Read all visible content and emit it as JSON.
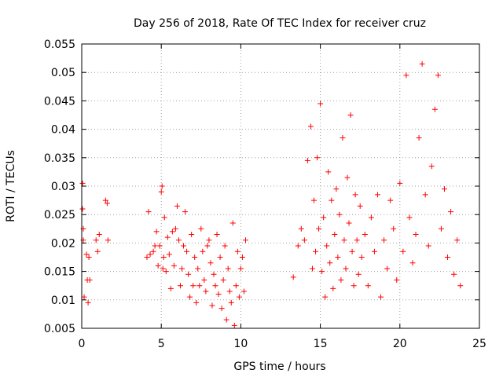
{
  "chart_data": {
    "type": "scatter",
    "title": "Day 256 of 2018, Rate Of TEC Index for receiver cruz",
    "xlabel": "GPS time / hours",
    "ylabel": "ROTI / TECUs",
    "xlim": [
      0,
      25
    ],
    "ylim": [
      0.005,
      0.055
    ],
    "xticks": [
      0,
      5,
      10,
      15,
      20,
      25
    ],
    "yticks": [
      0.005,
      0.01,
      0.015,
      0.02,
      0.025,
      0.03,
      0.035,
      0.04,
      0.045,
      0.05,
      0.055
    ],
    "xtick_labels": [
      "0",
      "5",
      "10",
      "15",
      "20",
      "25"
    ],
    "ytick_labels": [
      "0.005",
      "0.01",
      "0.015",
      "0.02",
      "0.025",
      "0.03",
      "0.035",
      "0.04",
      "0.045",
      "0.05",
      "0.055"
    ],
    "grid": true,
    "marker": "+",
    "color": "#ff0000",
    "series": [
      {
        "name": "ROTI",
        "x": [
          0.05,
          0.05,
          0.1,
          0.1,
          0.15,
          0.3,
          0.35,
          0.4,
          0.45,
          0.5,
          0.9,
          1.0,
          1.1,
          1.5,
          1.6,
          1.65,
          4.1,
          4.2,
          4.3,
          4.5,
          4.6,
          4.7,
          4.8,
          4.9,
          5.0,
          5.05,
          5.1,
          5.15,
          5.2,
          5.3,
          5.4,
          5.5,
          5.6,
          5.7,
          5.8,
          5.9,
          6.0,
          6.1,
          6.2,
          6.3,
          6.4,
          6.5,
          6.6,
          6.7,
          6.8,
          6.9,
          7.0,
          7.1,
          7.2,
          7.3,
          7.4,
          7.5,
          7.6,
          7.7,
          7.8,
          7.9,
          8.0,
          8.1,
          8.2,
          8.3,
          8.4,
          8.5,
          8.6,
          8.7,
          8.8,
          8.9,
          9.0,
          9.1,
          9.2,
          9.3,
          9.4,
          9.5,
          9.6,
          9.7,
          9.8,
          9.9,
          10.0,
          10.1,
          10.2,
          10.3,
          13.3,
          13.6,
          13.8,
          14.0,
          14.2,
          14.4,
          14.5,
          14.6,
          14.7,
          14.8,
          14.9,
          15.0,
          15.1,
          15.2,
          15.3,
          15.4,
          15.5,
          15.6,
          15.7,
          15.8,
          15.9,
          16.0,
          16.1,
          16.2,
          16.3,
          16.4,
          16.5,
          16.6,
          16.7,
          16.8,
          16.9,
          17.0,
          17.1,
          17.2,
          17.3,
          17.4,
          17.5,
          17.6,
          17.8,
          18.0,
          18.2,
          18.4,
          18.6,
          18.8,
          19.0,
          19.2,
          19.4,
          19.6,
          19.8,
          20.0,
          20.2,
          20.4,
          20.6,
          20.8,
          21.0,
          21.2,
          21.4,
          21.6,
          21.8,
          22.0,
          22.2,
          22.4,
          22.6,
          22.8,
          23.0,
          23.2,
          23.4,
          23.6,
          23.8
        ],
        "y": [
          0.0305,
          0.026,
          0.0225,
          0.0205,
          0.0105,
          0.018,
          0.0135,
          0.0095,
          0.0175,
          0.0135,
          0.0205,
          0.0185,
          0.0215,
          0.0275,
          0.027,
          0.0205,
          0.0175,
          0.0255,
          0.018,
          0.0185,
          0.0195,
          0.022,
          0.016,
          0.0195,
          0.029,
          0.03,
          0.0155,
          0.0175,
          0.0245,
          0.015,
          0.021,
          0.018,
          0.012,
          0.022,
          0.016,
          0.0225,
          0.0265,
          0.0205,
          0.0125,
          0.0155,
          0.0195,
          0.0255,
          0.0185,
          0.0145,
          0.0105,
          0.0215,
          0.0125,
          0.0175,
          0.0095,
          0.0155,
          0.0125,
          0.0225,
          0.0185,
          0.0135,
          0.0115,
          0.0195,
          0.0205,
          0.0165,
          0.009,
          0.0145,
          0.0125,
          0.0215,
          0.011,
          0.0175,
          0.0085,
          0.0135,
          0.0195,
          0.0065,
          0.0155,
          0.0115,
          0.0095,
          0.0235,
          0.0055,
          0.0125,
          0.0185,
          0.0105,
          0.0155,
          0.0175,
          0.0115,
          0.0205,
          0.014,
          0.0195,
          0.0225,
          0.0205,
          0.0345,
          0.0405,
          0.0155,
          0.0275,
          0.0185,
          0.035,
          0.0225,
          0.0445,
          0.015,
          0.0245,
          0.0105,
          0.0195,
          0.0325,
          0.0165,
          0.0275,
          0.012,
          0.0215,
          0.0295,
          0.0175,
          0.025,
          0.0135,
          0.0385,
          0.0205,
          0.0155,
          0.0315,
          0.0235,
          0.0425,
          0.0185,
          0.0125,
          0.0285,
          0.0205,
          0.0145,
          0.0265,
          0.0175,
          0.0215,
          0.0125,
          0.0245,
          0.0185,
          0.0285,
          0.0105,
          0.0205,
          0.0155,
          0.0275,
          0.0225,
          0.0135,
          0.0305,
          0.0185,
          0.0495,
          0.0245,
          0.0165,
          0.0215,
          0.0385,
          0.0515,
          0.0285,
          0.0195,
          0.0335,
          0.0435,
          0.0495,
          0.0225,
          0.0295,
          0.0175,
          0.0255,
          0.0145,
          0.0205,
          0.0125
        ]
      }
    ]
  }
}
